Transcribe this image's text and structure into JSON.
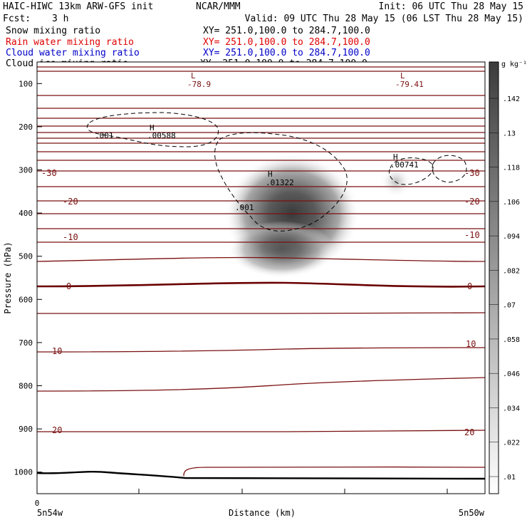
{
  "header": {
    "model": "HAIC-HIWC 13km ARW-GFS init",
    "org": "NCAR/MMM",
    "init": "Init: 06 UTC Thu 28 May 15",
    "fcst_label": "Fcst:",
    "fcst_value": "3 h",
    "valid": "Valid: 09 UTC Thu 28 May 15 (06 LST Thu 28 May 15)"
  },
  "fields": [
    {
      "name": "Snow mixing ratio",
      "xy": "XY= 251.0,100.0 to 284.7,100.0",
      "color": "#000000"
    },
    {
      "name": "Rain water mixing ratio",
      "xy": "XY= 251.0,100.0 to 284.7,100.0",
      "color": "#e00000"
    },
    {
      "name": "Cloud water mixing ratio",
      "xy": "XY= 251.0,100.0 to 284.7,100.0",
      "color": "#0000c8"
    },
    {
      "name": "Cloud ice mixing ratio",
      "xy": "XY= 251.0,100.0 to 284.7,100.0",
      "color": "#000000"
    }
  ],
  "colors": {
    "temperature_contour": "#7a1010",
    "zero_isotherm": "#6a0000",
    "ice_contour": "#000000",
    "shade_max": "#3c3c3c",
    "shade_min": "#ffffff"
  },
  "chart_data": {
    "type": "heatmap",
    "xlabel": "Distance (km)",
    "ylabel": "Pressure (hPa)",
    "x_ticks": [
      "0"
    ],
    "x_left_label": "5n54w",
    "x_right_label": "5n50w",
    "y_ticks": [
      100,
      200,
      300,
      400,
      500,
      600,
      700,
      800,
      900,
      1000
    ],
    "ylim": [
      1050,
      50
    ],
    "y_scale": "linear (pressure)",
    "shaded_field": "Cloud ice mixing ratio",
    "colorbar": {
      "units": "g kg⁻¹",
      "ticks": [
        ".142",
        ".13",
        ".118",
        ".106",
        ".094",
        ".082",
        ".07",
        ".058",
        ".046",
        ".034",
        ".022",
        ".01"
      ]
    },
    "temperature_contours": {
      "labels": [
        {
          "text": "-30",
          "side": "left",
          "pressure": 330
        },
        {
          "text": "-20",
          "side": "left",
          "pressure": 380
        },
        {
          "text": "-10",
          "side": "left",
          "pressure": 455
        },
        {
          "text": "0",
          "side": "left",
          "pressure": 565
        },
        {
          "text": "10",
          "side": "left",
          "pressure": 720
        },
        {
          "text": "20",
          "side": "left",
          "pressure": 895
        },
        {
          "text": "-30",
          "side": "right",
          "pressure": 330
        },
        {
          "text": "-20",
          "side": "right",
          "pressure": 380
        },
        {
          "text": "-10",
          "side": "right",
          "pressure": 455
        },
        {
          "text": "0",
          "side": "right",
          "pressure": 565
        },
        {
          "text": "10",
          "side": "right",
          "pressure": 720
        },
        {
          "text": "20",
          "side": "right",
          "pressure": 900
        }
      ]
    },
    "extrema": [
      {
        "type": "L",
        "value": "-78.9"
      },
      {
        "type": "L",
        "value": "-79.41"
      },
      {
        "type": "H",
        "value": ".00588"
      },
      {
        "type": "H",
        "value": ".01322"
      },
      {
        "type": "H",
        "value": ".00741"
      }
    ],
    "ice_contour_labels": [
      ".001",
      ".001"
    ],
    "grid": false,
    "legend_placement": "top-left"
  }
}
